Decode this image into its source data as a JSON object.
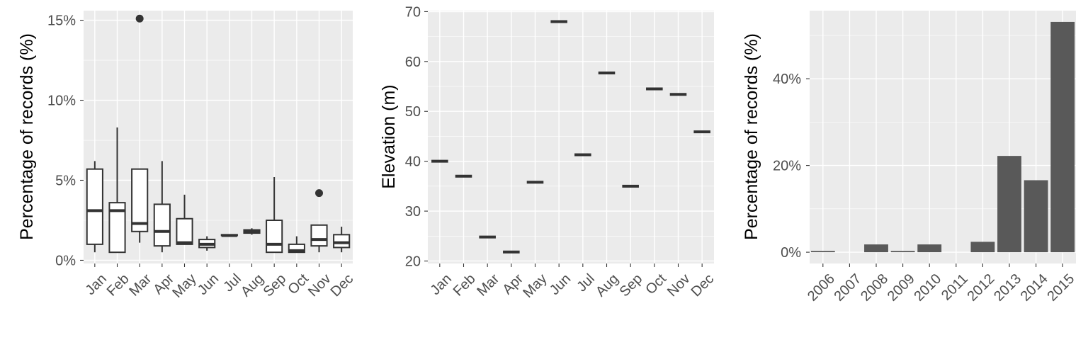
{
  "chart_data": [
    {
      "type": "box",
      "xlabel": "",
      "ylabel": "Percentage of records (%)",
      "categories": [
        "Jan",
        "Feb",
        "Mar",
        "Apr",
        "May",
        "Jun",
        "Jul",
        "Aug",
        "Sep",
        "Oct",
        "Nov",
        "Dec"
      ],
      "ylim": [
        -0.2,
        15.6
      ],
      "yticks": [
        0,
        5,
        10,
        15
      ],
      "ytick_labels": [
        "0%",
        "5%",
        "10%",
        "15%"
      ],
      "boxes": [
        {
          "min": 0.5,
          "q1": 1.0,
          "median": 3.1,
          "q3": 5.7,
          "max": 6.2,
          "outliers": []
        },
        {
          "min": 0.5,
          "q1": 0.5,
          "median": 3.1,
          "q3": 3.6,
          "max": 8.3,
          "outliers": []
        },
        {
          "min": 1.1,
          "q1": 1.8,
          "median": 2.3,
          "q3": 5.7,
          "max": 5.7,
          "outliers": [
            15.1
          ]
        },
        {
          "min": 0.5,
          "q1": 0.9,
          "median": 1.8,
          "q3": 3.5,
          "max": 6.2,
          "outliers": []
        },
        {
          "min": 1.0,
          "q1": 1.0,
          "median": 1.1,
          "q3": 2.6,
          "max": 4.1,
          "outliers": []
        },
        {
          "min": 0.6,
          "q1": 0.8,
          "median": 1.0,
          "q3": 1.3,
          "max": 1.5,
          "outliers": []
        },
        {
          "min": 1.55,
          "q1": 1.55,
          "median": 1.55,
          "q3": 1.6,
          "max": 1.6,
          "outliers": []
        },
        {
          "min": 1.6,
          "q1": 1.7,
          "median": 1.8,
          "q3": 1.9,
          "max": 2.0,
          "outliers": []
        },
        {
          "min": 0.5,
          "q1": 0.5,
          "median": 1.0,
          "q3": 2.5,
          "max": 5.2,
          "outliers": []
        },
        {
          "min": 0.5,
          "q1": 0.5,
          "median": 0.6,
          "q3": 1.0,
          "max": 1.5,
          "outliers": []
        },
        {
          "min": 0.5,
          "q1": 0.9,
          "median": 1.3,
          "q3": 2.2,
          "max": 2.2,
          "outliers": [
            4.2
          ]
        },
        {
          "min": 0.5,
          "q1": 0.8,
          "median": 1.1,
          "q3": 1.6,
          "max": 2.1,
          "outliers": []
        }
      ]
    },
    {
      "type": "point",
      "xlabel": "",
      "ylabel": "Elevation (m)",
      "categories": [
        "Jan",
        "Feb",
        "Mar",
        "Apr",
        "May",
        "Jun",
        "Jul",
        "Aug",
        "Sep",
        "Oct",
        "Nov",
        "Dec"
      ],
      "values": [
        40,
        37,
        24.8,
        21.8,
        35.8,
        68,
        41.3,
        57.7,
        35,
        54.5,
        53.4,
        45.9
      ],
      "ylim": [
        19.5,
        70.2
      ],
      "yticks": [
        20,
        30,
        40,
        50,
        60,
        70
      ],
      "ytick_labels": [
        "20",
        "30",
        "40",
        "50",
        "60",
        "70"
      ]
    },
    {
      "type": "bar",
      "xlabel": "",
      "ylabel": "Percentage of records (%)",
      "categories": [
        "2006",
        "2007",
        "2008",
        "2009",
        "2010",
        "2011",
        "2012",
        "2013",
        "2014",
        "2015"
      ],
      "values": [
        0.3,
        0,
        1.8,
        0.3,
        1.8,
        0,
        2.4,
        22.2,
        16.6,
        53.1
      ],
      "ylim": [
        -2.6,
        55.7
      ],
      "yticks": [
        0,
        20,
        40
      ],
      "ytick_labels": [
        "0%",
        "20%",
        "40%"
      ]
    }
  ]
}
